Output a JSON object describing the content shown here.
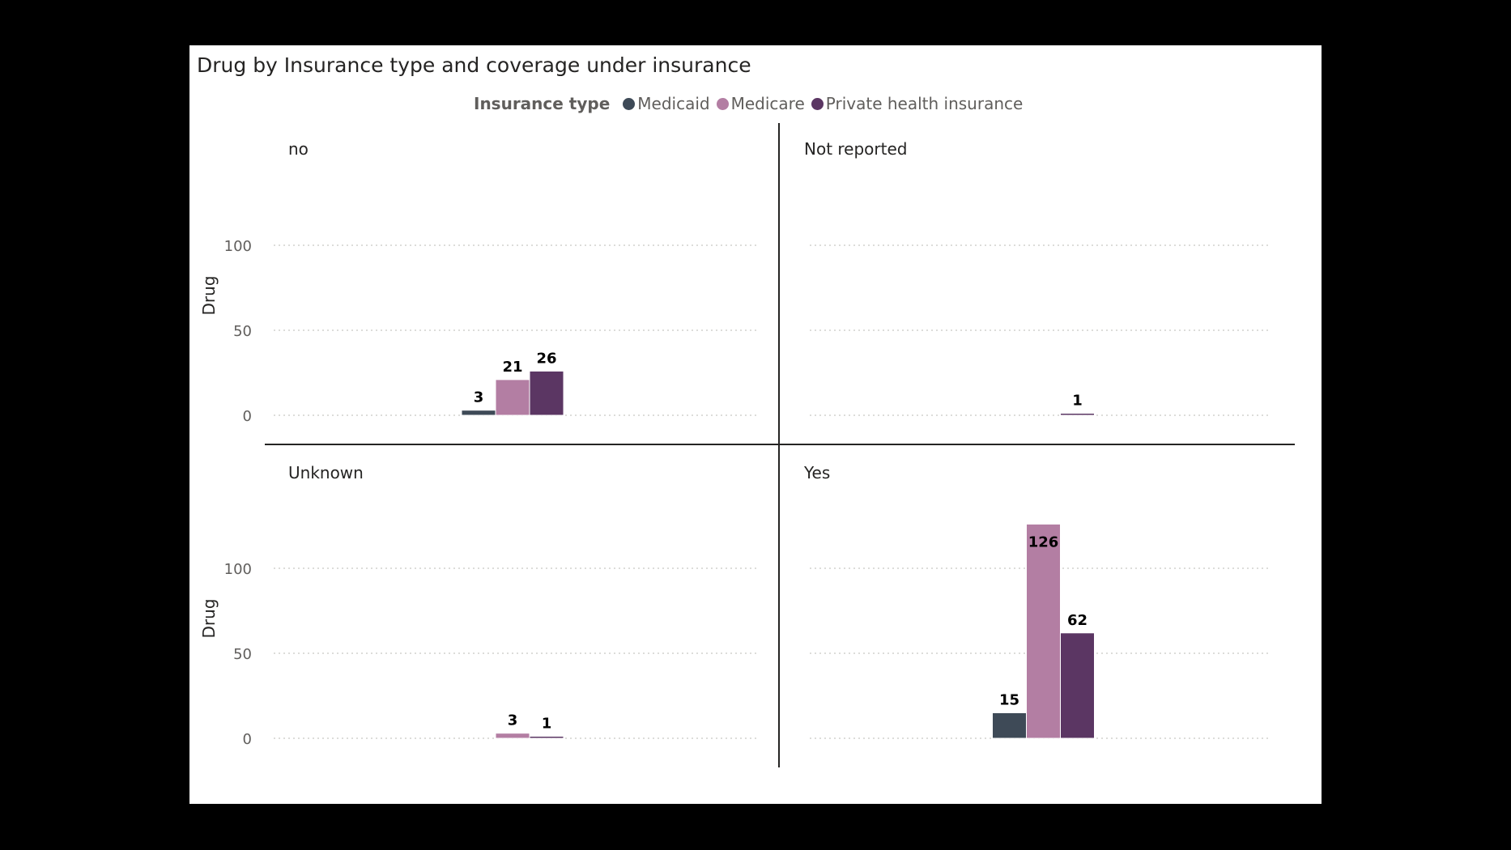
{
  "title": "Drug by Insurance type and coverage under insurance",
  "legend": {
    "title": "Insurance type",
    "items": [
      {
        "name": "Medicaid",
        "color": "#3e4a57"
      },
      {
        "name": "Medicare",
        "color": "#b37ea3"
      },
      {
        "name": "Private health insurance",
        "color": "#5b3663"
      }
    ]
  },
  "chart_data": {
    "type": "bar",
    "ylabel": "Drug",
    "ylim": [
      0,
      126
    ],
    "yticks": [
      0,
      50,
      100
    ],
    "grid": true,
    "legend_position": "top-center",
    "series_names": [
      "Medicaid",
      "Medicare",
      "Private health insurance"
    ],
    "panels": [
      {
        "label": "no",
        "values": [
          3,
          21,
          26
        ]
      },
      {
        "label": "Not reported",
        "values": [
          null,
          null,
          1
        ]
      },
      {
        "label": "Unknown",
        "values": [
          null,
          3,
          1
        ]
      },
      {
        "label": "Yes",
        "values": [
          15,
          126,
          62
        ]
      }
    ]
  }
}
